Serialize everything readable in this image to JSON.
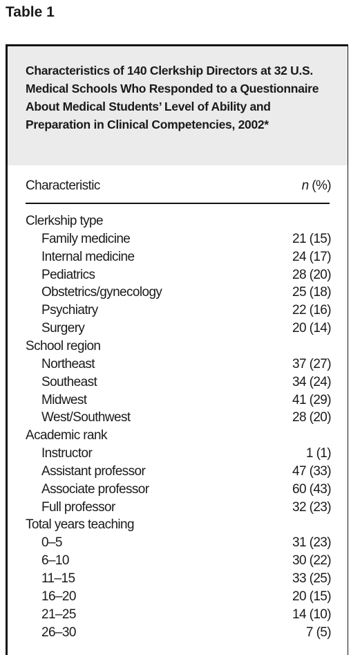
{
  "heading": "Table 1",
  "table": {
    "title": "Characteristics of 140 Clerkship Directors at 32 U.S. Medical Schools Who Responded to a Questionnaire About Medical Students’ Level of Ability and Preparation in Clinical Competencies, 2002*",
    "columns": {
      "characteristic": "Characteristic",
      "count": {
        "italic": "n",
        "rest": "(%)"
      }
    },
    "groups": [
      {
        "label": "Clerkship type",
        "rows": [
          [
            "Family medicine",
            "21 (15)"
          ],
          [
            "Internal medicine",
            "24 (17)"
          ],
          [
            "Pediatrics",
            "28 (20)"
          ],
          [
            "Obstetrics/gynecology",
            "25 (18)"
          ],
          [
            "Psychiatry",
            "22 (16)"
          ],
          [
            "Surgery",
            "20 (14)"
          ]
        ]
      },
      {
        "label": "School region",
        "rows": [
          [
            "Northeast",
            "37 (27)"
          ],
          [
            "Southeast",
            "34 (24)"
          ],
          [
            "Midwest",
            "41 (29)"
          ],
          [
            "West/Southwest",
            "28 (20)"
          ]
        ]
      },
      {
        "label": "Academic rank",
        "rows": [
          [
            "Instructor",
            "1 (1)"
          ],
          [
            "Assistant professor",
            "47 (33)"
          ],
          [
            "Associate professor",
            "60 (43)"
          ],
          [
            "Full professor",
            "32 (23)"
          ]
        ]
      },
      {
        "label": "Total years teaching",
        "rows": [
          [
            "0–5",
            "31 (23)"
          ],
          [
            "6–10",
            "30 (22)"
          ],
          [
            "11–15",
            "33 (25)"
          ],
          [
            "16–20",
            "20 (15)"
          ],
          [
            "21–25",
            "14 (10)"
          ],
          [
            "26–30",
            "7 (5)"
          ]
        ]
      }
    ]
  }
}
